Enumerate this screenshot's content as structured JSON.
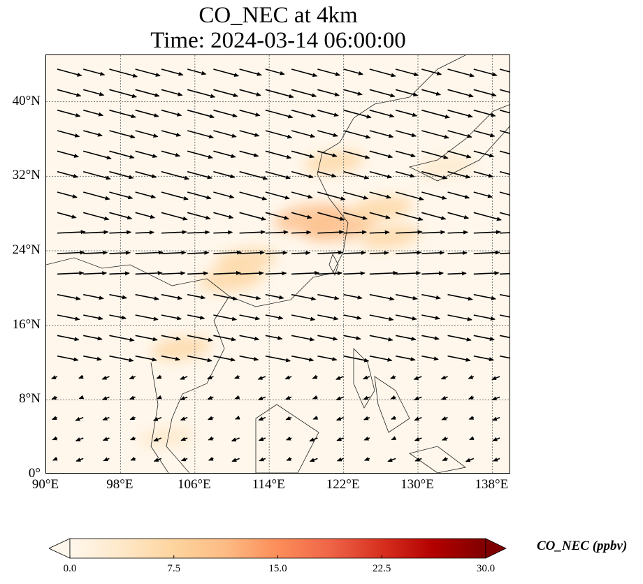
{
  "title_line1": "CO_NEC at 4km",
  "title_line2": "Time: 2024-03-14 06:00:00",
  "lat_ticks": [
    {
      "value": 40,
      "label": "40°N"
    },
    {
      "value": 32,
      "label": "32°N"
    },
    {
      "value": 24,
      "label": "24°N"
    },
    {
      "value": 16,
      "label": "16°N"
    },
    {
      "value": 8,
      "label": "8°N"
    },
    {
      "value": 0,
      "label": "0°"
    }
  ],
  "lon_ticks": [
    {
      "value": 90,
      "label": "90°E"
    },
    {
      "value": 98,
      "label": "98°E"
    },
    {
      "value": 106,
      "label": "106°E"
    },
    {
      "value": 114,
      "label": "114°E"
    },
    {
      "value": 122,
      "label": "122°E"
    },
    {
      "value": 130,
      "label": "130°E"
    },
    {
      "value": 138,
      "label": "138°E"
    }
  ],
  "extent": {
    "lon_min": 90,
    "lon_max": 140,
    "lat_min": 0,
    "lat_max": 45
  },
  "colorbar": {
    "label": "CO_NEC (ppbv)",
    "min": 0,
    "max": 30,
    "ticks": [
      {
        "value": 0,
        "label": "0.0"
      },
      {
        "value": 7.5,
        "label": "7.5"
      },
      {
        "value": 15,
        "label": "15.0"
      },
      {
        "value": 22.5,
        "label": "22.5"
      },
      {
        "value": 30,
        "label": "30.0"
      }
    ],
    "colors": [
      "#fff7ec",
      "#fee8c8",
      "#fdd49e",
      "#fdbb84",
      "#fc8d59",
      "#ef6548",
      "#d7301f",
      "#b30000",
      "#7f0000"
    ]
  },
  "plumes": [
    {
      "lon": 118.5,
      "lat": 27.5,
      "value": 13
    },
    {
      "lon": 121.5,
      "lat": 26.5,
      "value": 12
    },
    {
      "lon": 126,
      "lat": 28.5,
      "value": 8
    },
    {
      "lon": 121,
      "lat": 33.5,
      "value": 6
    },
    {
      "lon": 110,
      "lat": 21,
      "value": 9
    },
    {
      "lon": 111.5,
      "lat": 23,
      "value": 7
    },
    {
      "lon": 127,
      "lat": 25.5,
      "value": 6
    },
    {
      "lon": 133,
      "lat": 33,
      "value": 5
    },
    {
      "lon": 104.5,
      "lat": 13.5,
      "value": 6
    },
    {
      "lon": 103,
      "lat": 4,
      "value": 4
    }
  ],
  "wind_field_regions": [
    {
      "lat_min": 28,
      "lat_max": 45,
      "u": 1.0,
      "v": -0.3
    },
    {
      "lat_min": 20,
      "lat_max": 28,
      "u": 1.0,
      "v": 0.05
    },
    {
      "lat_min": 12,
      "lat_max": 20,
      "u": 0.9,
      "v": -0.2
    },
    {
      "lat_min": 0,
      "lat_max": 12,
      "u": -0.7,
      "v": -0.3
    }
  ]
}
